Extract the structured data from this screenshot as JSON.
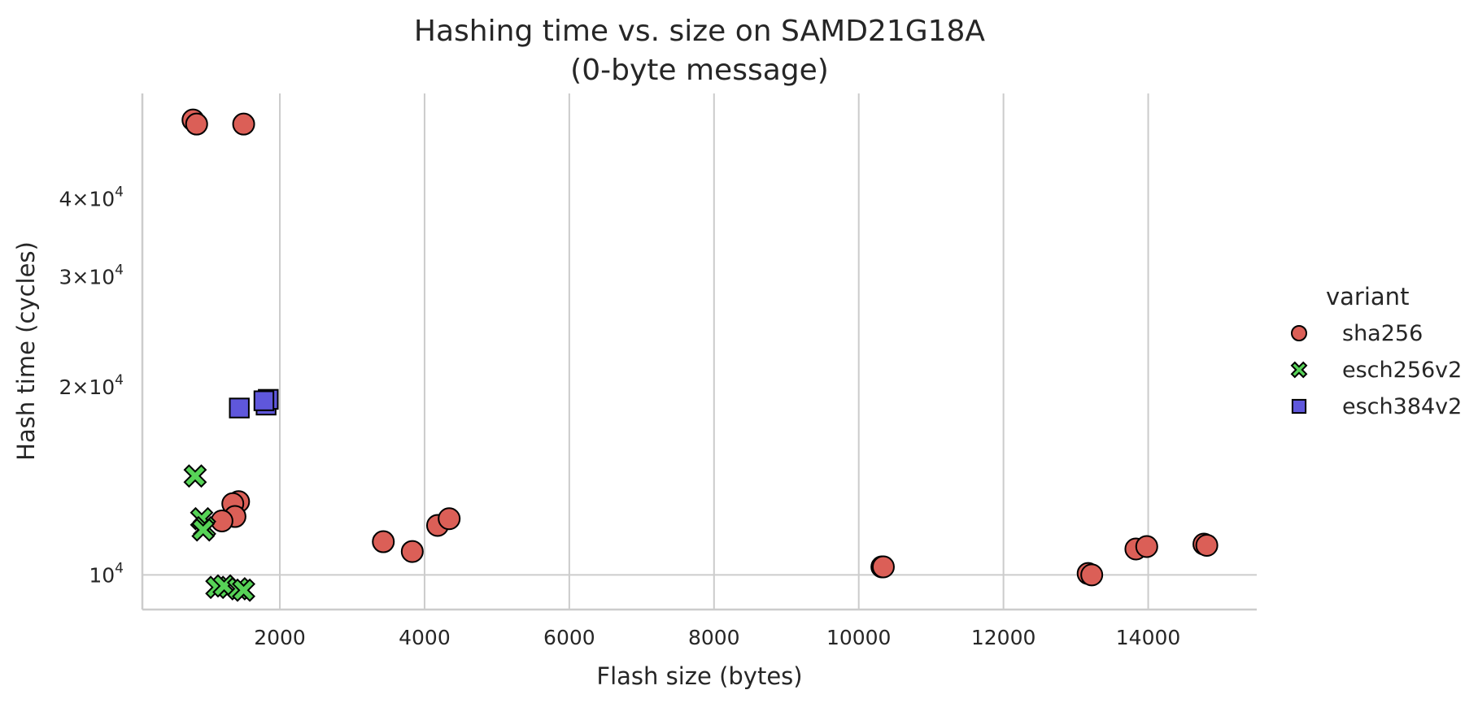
{
  "chart_data": {
    "type": "scatter",
    "title": "Hashing time vs. size on SAMD21G18A",
    "subtitle": "(0-byte message)",
    "xlabel": "Flash size (bytes)",
    "ylabel": "Hash time (cycles)",
    "xlim": [
      100,
      15500
    ],
    "ylim": [
      8800,
      59000
    ],
    "y_scale": "log",
    "grid": true,
    "x_ticks": [
      2000,
      4000,
      6000,
      8000,
      10000,
      12000,
      14000
    ],
    "x_tick_labels": [
      "2000",
      "4000",
      "6000",
      "8000",
      "10000",
      "12000",
      "14000"
    ],
    "y_ticks": [
      {
        "value": 10000,
        "base": "10",
        "exp": "4"
      },
      {
        "value": 20000,
        "base": "2×10",
        "exp": "4"
      },
      {
        "value": 30000,
        "base": "3×10",
        "exp": "4"
      },
      {
        "value": 40000,
        "base": "4×10",
        "exp": "4"
      }
    ],
    "grid_y_values": [
      10000
    ],
    "legend": {
      "title": "variant",
      "placement": "right"
    },
    "series": [
      {
        "name": "sha256",
        "marker": "circle",
        "color": "#db5f57",
        "points": [
          [
            800,
            53500
          ],
          [
            850,
            52700
          ],
          [
            1500,
            52700
          ],
          [
            1430,
            13100
          ],
          [
            1350,
            13000
          ],
          [
            1380,
            12400
          ],
          [
            1200,
            12200
          ],
          [
            3430,
            11300
          ],
          [
            3830,
            10900
          ],
          [
            4180,
            12000
          ],
          [
            4340,
            12300
          ],
          [
            10320,
            10300
          ],
          [
            10340,
            10300
          ],
          [
            13170,
            10050
          ],
          [
            13220,
            10000
          ],
          [
            13830,
            11000
          ],
          [
            13980,
            11100
          ],
          [
            14770,
            11200
          ],
          [
            14810,
            11150
          ]
        ]
      },
      {
        "name": "esch256v2",
        "marker": "x",
        "color": "#57d357",
        "points": [
          [
            830,
            14400
          ],
          [
            920,
            12300
          ],
          [
            960,
            11900
          ],
          [
            940,
            11800
          ],
          [
            1130,
            9550
          ],
          [
            1230,
            9600
          ],
          [
            1430,
            9500
          ],
          [
            1500,
            9450
          ]
        ]
      },
      {
        "name": "esch384v2",
        "marker": "square",
        "color": "#5f57db",
        "points": [
          [
            1440,
            18500
          ],
          [
            1810,
            18700
          ],
          [
            1840,
            19100
          ],
          [
            1780,
            19000
          ]
        ]
      }
    ]
  }
}
